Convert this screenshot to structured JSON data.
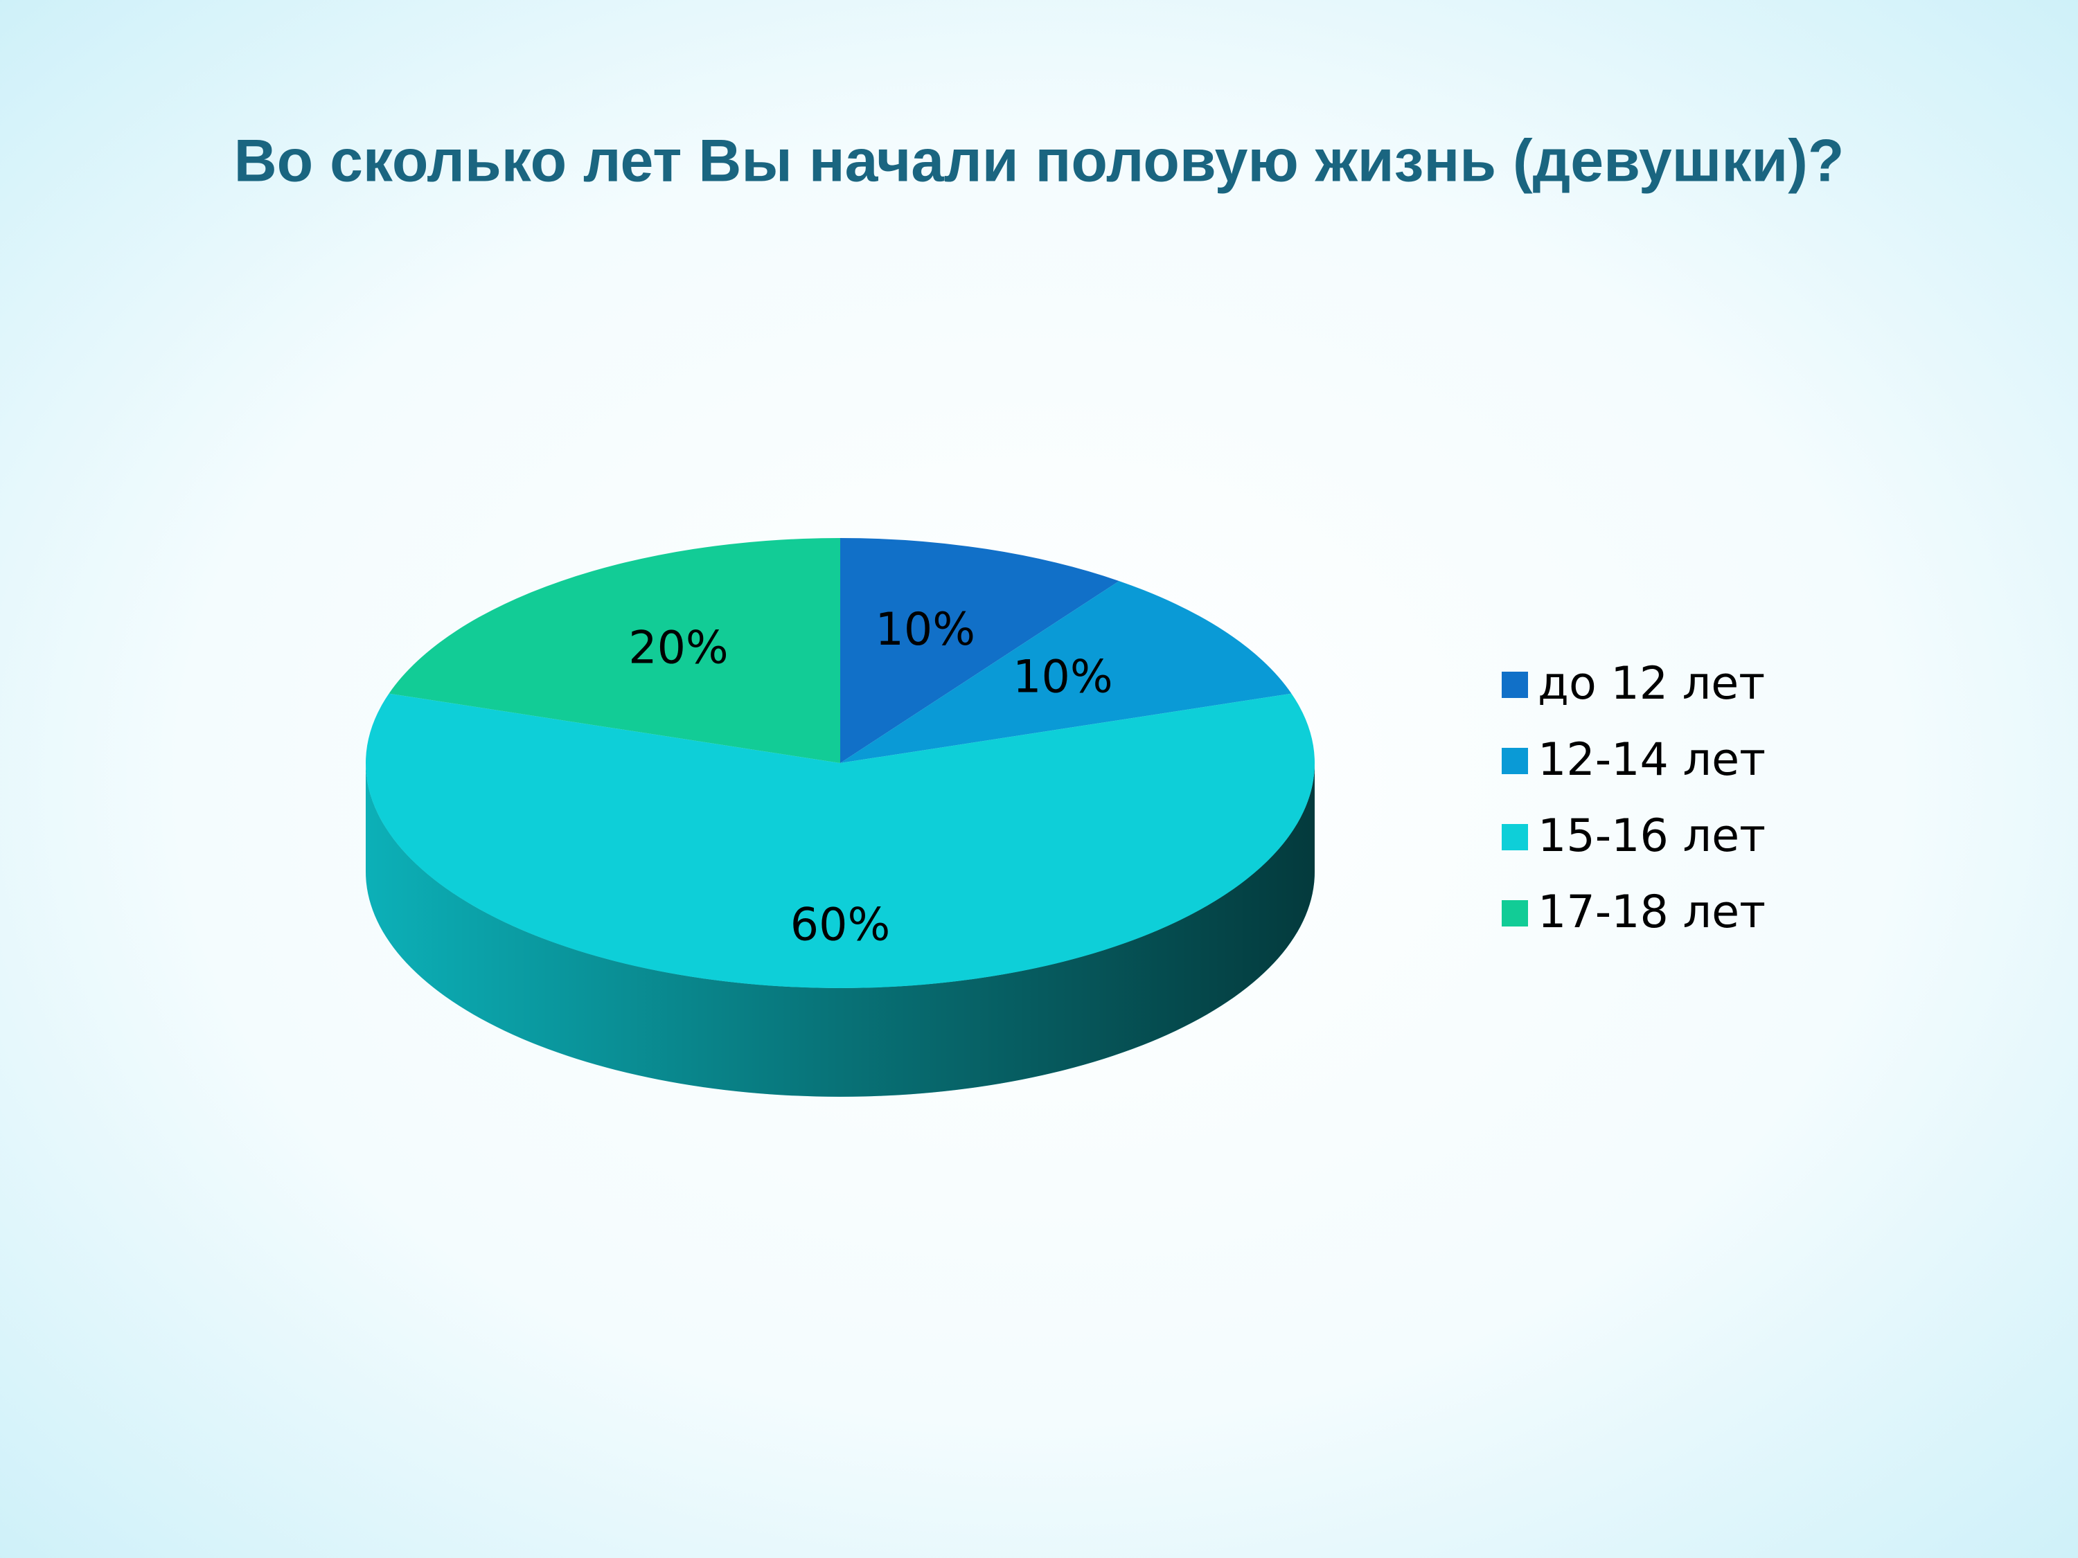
{
  "chart_data": {
    "type": "pie",
    "title": "Во сколько лет Вы начали половую жизнь (девушки)?",
    "categories": [
      "до 12 лет",
      "12-14 лет",
      "15-16 лет",
      "17-18 лет"
    ],
    "values": [
      10,
      10,
      60,
      20
    ],
    "value_labels": [
      "10%",
      "10%",
      "60%",
      "20%"
    ],
    "colors": [
      "#1170c8",
      "#0a9ad6",
      "#0ecfd8",
      "#12cc96"
    ],
    "legend": "right"
  }
}
